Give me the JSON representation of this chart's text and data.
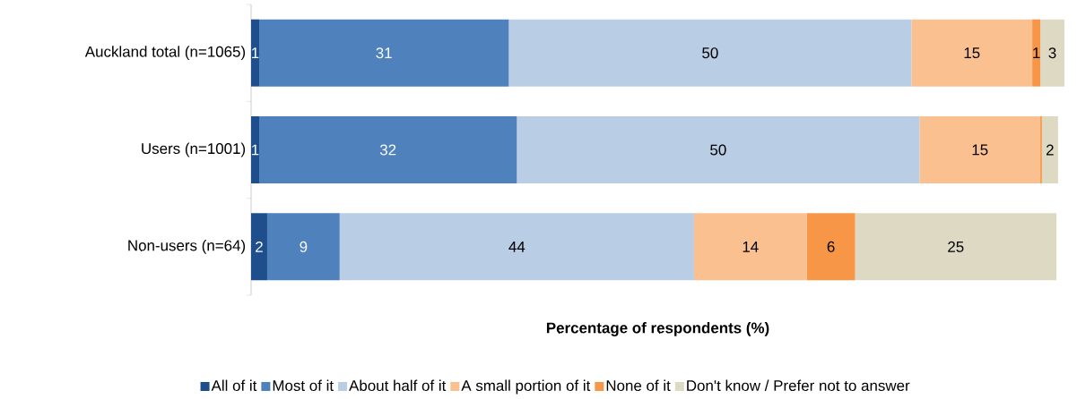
{
  "chart_data": {
    "type": "bar",
    "orientation": "horizontal",
    "stacked": true,
    "legend": "bottom",
    "xlabel": "Percentage of respondents (%)",
    "categories": [
      "Auckland total (n=1065)",
      "Users (n=1001)",
      "Non-users (n=64)"
    ],
    "series": [
      {
        "name": "All of it",
        "color": "#1f4e8c",
        "values": [
          1,
          1,
          2
        ],
        "value_labels": [
          "1",
          "1",
          "2"
        ]
      },
      {
        "name": "Most of it",
        "color": "#4f81bd",
        "values": [
          31,
          32,
          9
        ],
        "value_labels": [
          "31",
          "32",
          "9"
        ]
      },
      {
        "name": "About half of it",
        "color": "#b9cde5",
        "values": [
          50,
          50,
          44
        ],
        "value_labels": [
          "50",
          "50",
          "44"
        ]
      },
      {
        "name": "A small portion of it",
        "color": "#fac090",
        "values": [
          15,
          15,
          14
        ],
        "value_labels": [
          "15",
          "15",
          "14"
        ]
      },
      {
        "name": "None of it",
        "color": "#f79646",
        "values": [
          1,
          0.2,
          6
        ],
        "value_labels": [
          "1",
          null,
          "6"
        ]
      },
      {
        "name": "Don't know / Prefer not to answer",
        "color": "#ddd9c3",
        "values": [
          3,
          2,
          25
        ],
        "value_labels": [
          "3",
          "2",
          "25"
        ]
      }
    ]
  }
}
